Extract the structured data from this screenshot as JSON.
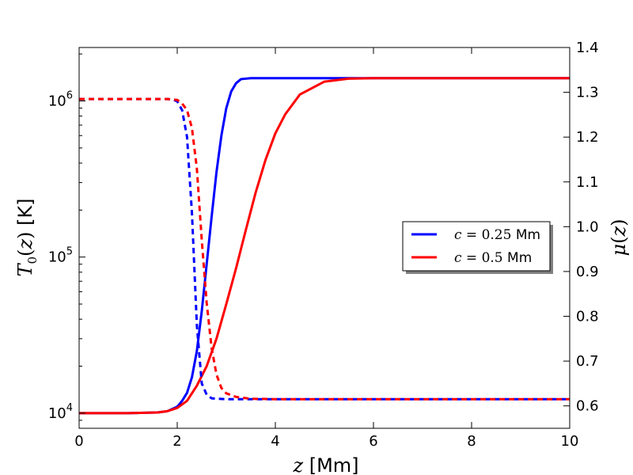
{
  "chart_data": {
    "type": "line",
    "xlabel": "z [Mm]",
    "ylabel_left": "T0(z) [K]",
    "ylabel_right": "μ(z)",
    "xlim": [
      0,
      10
    ],
    "ylim_left": [
      8000,
      2200000
    ],
    "ylim_right": [
      0.55,
      1.4
    ],
    "yscale_left": "log",
    "x_ticks": [
      "0",
      "2",
      "4",
      "6",
      "8",
      "10"
    ],
    "x_tick_values": [
      0,
      2,
      4,
      6,
      8,
      10
    ],
    "y_left_ticks": [
      {
        "base": "10",
        "exp": "4",
        "value": 10000
      },
      {
        "base": "10",
        "exp": "5",
        "value": 100000
      },
      {
        "base": "10",
        "exp": "6",
        "value": 1000000
      }
    ],
    "y_right_ticks": [
      "0.6",
      "0.7",
      "0.8",
      "0.9",
      "1.0",
      "1.1",
      "1.2",
      "1.3",
      "1.4"
    ],
    "y_right_tick_values": [
      0.6,
      0.7,
      0.8,
      0.9,
      1.0,
      1.1,
      1.2,
      1.3,
      1.4
    ],
    "legend_position": "right",
    "grid": false,
    "series": [
      {
        "name": "c = 0.25 Mm",
        "color": "#0000ff",
        "axis": "left",
        "style": "solid",
        "x": [
          0,
          1.0,
          1.6,
          1.8,
          2.0,
          2.1,
          2.2,
          2.3,
          2.4,
          2.5,
          2.6,
          2.7,
          2.8,
          2.9,
          3.0,
          3.1,
          3.2,
          3.3,
          3.5,
          3.8,
          4.2,
          5.0,
          6.0,
          8.0,
          10.0
        ],
        "values": [
          10000,
          10000,
          10100,
          10300,
          11000,
          12000,
          13500,
          17000,
          25000,
          45000,
          90000,
          180000,
          350000,
          600000,
          900000,
          1150000,
          1300000,
          1380000,
          1400000,
          1400000,
          1400000,
          1400000,
          1400000,
          1400000,
          1400000
        ]
      },
      {
        "name": "c = 0.5 Mm",
        "color": "#ff0000",
        "axis": "left",
        "style": "solid",
        "x": [
          0,
          1.0,
          1.6,
          1.8,
          2.0,
          2.2,
          2.4,
          2.6,
          2.8,
          3.0,
          3.2,
          3.4,
          3.6,
          3.8,
          4.0,
          4.2,
          4.5,
          5.0,
          5.5,
          6.0,
          8.0,
          10.0
        ],
        "values": [
          10000,
          10000,
          10100,
          10300,
          10800,
          12000,
          15000,
          20000,
          30000,
          50000,
          85000,
          150000,
          260000,
          420000,
          620000,
          820000,
          1100000,
          1330000,
          1390000,
          1400000,
          1400000,
          1400000
        ]
      },
      {
        "name": "",
        "color": "#0000ff",
        "axis": "right",
        "style": "dashed",
        "x": [
          0,
          1.0,
          1.5,
          1.8,
          1.9,
          2.0,
          2.1,
          2.2,
          2.3,
          2.4,
          2.5,
          2.6,
          2.7,
          2.8,
          3.0,
          3.5,
          4.0,
          6.0,
          8.0,
          10.0
        ],
        "values": [
          1.285,
          1.285,
          1.285,
          1.285,
          1.284,
          1.28,
          1.26,
          1.2,
          1.03,
          0.78,
          0.65,
          0.625,
          0.617,
          0.616,
          0.615,
          0.615,
          0.615,
          0.615,
          0.615,
          0.615
        ]
      },
      {
        "name": "",
        "color": "#ff0000",
        "axis": "right",
        "style": "dashed",
        "x": [
          0,
          1.0,
          1.5,
          1.8,
          1.9,
          2.0,
          2.1,
          2.2,
          2.3,
          2.4,
          2.5,
          2.6,
          2.7,
          2.8,
          2.9,
          3.0,
          3.2,
          3.5,
          4.0,
          6.0,
          8.0,
          10.0
        ],
        "values": [
          1.285,
          1.285,
          1.285,
          1.285,
          1.284,
          1.283,
          1.275,
          1.26,
          1.22,
          1.13,
          0.97,
          0.83,
          0.73,
          0.67,
          0.64,
          0.628,
          0.62,
          0.616,
          0.615,
          0.615,
          0.615,
          0.615
        ]
      }
    ]
  }
}
